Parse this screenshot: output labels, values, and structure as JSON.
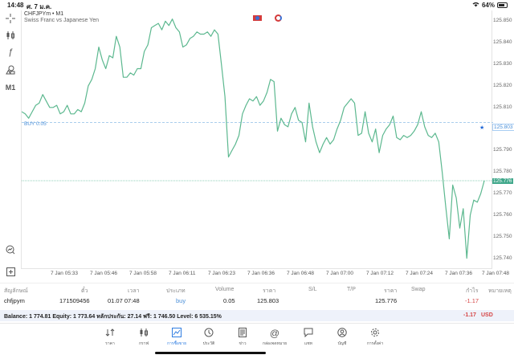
{
  "status_bar": {
    "time": "14:48",
    "date": "ศ. 7 ม.ค.",
    "wifi_icon": "wifi-icon",
    "battery": "64%"
  },
  "left_toolbar": [
    {
      "name": "crosshair-icon",
      "glyph": "+"
    },
    {
      "name": "candlestick-icon",
      "glyph": "⫾"
    },
    {
      "name": "function-icon",
      "glyph": "ƒ"
    },
    {
      "name": "objects-icon",
      "glyph": "⌂"
    },
    {
      "name": "timeframe-button",
      "glyph": "M1"
    },
    {
      "name": "zoom-chart-icon",
      "glyph": "⚲"
    },
    {
      "name": "add-object-icon",
      "glyph": "⊞"
    }
  ],
  "chart": {
    "symbol": "CHFJPYm • M1",
    "description": "Swiss Franc vs Japanese Yen",
    "buy_label": "BUY 0.05",
    "buy_price_tag": "125.803",
    "bid_price_tag": "125.776",
    "line_color": "#5cb88f",
    "buy_line_color": "#8fbde8",
    "bid_line_color": "#6cc3a3"
  },
  "chart_data": {
    "type": "line",
    "title": "CHFJPYm • M1",
    "subtitle": "Swiss Franc vs Japanese Yen",
    "xlabel": "",
    "ylabel": "",
    "ylim": [
      125.735,
      125.855
    ],
    "y_ticks": [
      "125.850",
      "125.840",
      "125.830",
      "125.820",
      "125.810",
      "125.800",
      "125.790",
      "125.780",
      "125.770",
      "125.760",
      "125.750",
      "125.740"
    ],
    "x_ticks": [
      "7 Jan 05:33",
      "7 Jan 05:46",
      "7 Jan 05:58",
      "7 Jan 06:11",
      "7 Jan 06:23",
      "7 Jan 06:36",
      "7 Jan 06:48",
      "7 Jan 07:00",
      "7 Jan 07:12",
      "7 Jan 07:24",
      "7 Jan 07:36",
      "7 Jan 07:48"
    ],
    "grid": false,
    "annotations": [
      {
        "label": "BUY 0.05",
        "value": 125.803
      },
      {
        "label": "current bid",
        "value": 125.776
      }
    ],
    "series": [
      {
        "name": "CHFJPYm close",
        "values": [
          125.808,
          125.807,
          125.805,
          125.808,
          125.811,
          125.812,
          125.816,
          125.813,
          125.81,
          125.81,
          125.811,
          125.807,
          125.808,
          125.811,
          125.807,
          125.807,
          125.809,
          125.808,
          125.812,
          125.82,
          125.823,
          125.828,
          125.838,
          125.832,
          125.828,
          125.834,
          125.833,
          125.843,
          125.838,
          125.824,
          125.824,
          125.826,
          125.825,
          125.828,
          125.828,
          125.836,
          125.839,
          125.847,
          125.848,
          125.849,
          125.846,
          125.85,
          125.848,
          125.851,
          125.847,
          125.845,
          125.838,
          125.839,
          125.842,
          125.843,
          125.845,
          125.844,
          125.844,
          125.845,
          125.843,
          125.846,
          125.844,
          125.83,
          125.815,
          125.787,
          125.79,
          125.793,
          125.797,
          125.807,
          125.811,
          125.814,
          125.813,
          125.815,
          125.811,
          125.813,
          125.817,
          125.823,
          125.822,
          125.799,
          125.805,
          125.802,
          125.801,
          125.807,
          125.81,
          125.804,
          125.803,
          125.794,
          125.812,
          125.801,
          125.794,
          125.789,
          125.793,
          125.796,
          125.793,
          125.795,
          125.8,
          125.804,
          125.81,
          125.812,
          125.814,
          125.812,
          125.797,
          125.798,
          125.808,
          125.798,
          125.794,
          125.8,
          125.789,
          125.797,
          125.8,
          125.802,
          125.806,
          125.796,
          125.795,
          125.797,
          125.796,
          125.797,
          125.799,
          125.802,
          125.808,
          125.801,
          125.797,
          125.796,
          125.798,
          125.794,
          125.78,
          125.764,
          125.749,
          125.774,
          125.768,
          125.754,
          125.763,
          125.74,
          125.76,
          125.767,
          125.766,
          125.77,
          125.776
        ]
      }
    ]
  },
  "time_axis": [
    "7 Jan 05:33",
    "7 Jan 05:46",
    "7 Jan 05:58",
    "7 Jan 06:11",
    "7 Jan 06:23",
    "7 Jan 06:36",
    "7 Jan 06:48",
    "7 Jan 07:00",
    "7 Jan 07:12",
    "7 Jan 07:24",
    "7 Jan 07:36",
    "7 Jan 07:48"
  ],
  "price_axis": [
    "125.850",
    "125.840",
    "125.830",
    "125.820",
    "125.810",
    "125.800",
    "125.790",
    "125.780",
    "125.770",
    "125.760",
    "125.750",
    "125.740"
  ],
  "positions_table": {
    "headers": {
      "symbol": "สัญลักษณ์",
      "ticket": "ตั๋ว",
      "time": "เวลา",
      "type": "ประเภท",
      "volume": "Volume",
      "open_price": "ราคา",
      "sl": "S/L",
      "tp": "T/P",
      "price": "ราคา",
      "swap": "Swap",
      "profit": "กำไร",
      "comment": "หมายเหตุ"
    },
    "rows": [
      {
        "symbol": "chfjpym",
        "ticket": "171509456",
        "time": "01.07 07:48",
        "type": "buy",
        "volume": "0.05",
        "open_price": "125.803",
        "sl": "",
        "tp": "",
        "price": "125.776",
        "swap": "",
        "profit": "-1.17",
        "comment": ""
      }
    ]
  },
  "account_summary": {
    "text": "Balance: 1 774.81 Equity: 1 773.64 หลักประกัน: 27.14 ฟรี: 1 746.50 Level: 6 535.15%",
    "total_profit": "-1.17",
    "currency": "USD"
  },
  "bottom_nav": [
    {
      "name": "nav-quotes",
      "icon": "↓↑",
      "label": "ราคา",
      "active": false
    },
    {
      "name": "nav-chart",
      "icon": "⫾⫾",
      "label": "กราฟ",
      "active": false
    },
    {
      "name": "nav-trade",
      "icon": "⬚",
      "label": "การซื้อขาย",
      "active": true
    },
    {
      "name": "nav-history",
      "icon": "◷",
      "label": "ประวัติ",
      "active": false
    },
    {
      "name": "nav-news",
      "icon": "▤",
      "label": "ข่าว",
      "active": false
    },
    {
      "name": "nav-mailbox",
      "icon": "@",
      "label": "กล่องจดหมาย",
      "active": false
    },
    {
      "name": "nav-chat",
      "icon": "▭",
      "label": "แชท",
      "active": false
    },
    {
      "name": "nav-accounts",
      "icon": "◎",
      "label": "บัญชี",
      "active": false
    },
    {
      "name": "nav-settings",
      "icon": "⚙",
      "label": "การตั้งค่า",
      "active": false
    }
  ]
}
